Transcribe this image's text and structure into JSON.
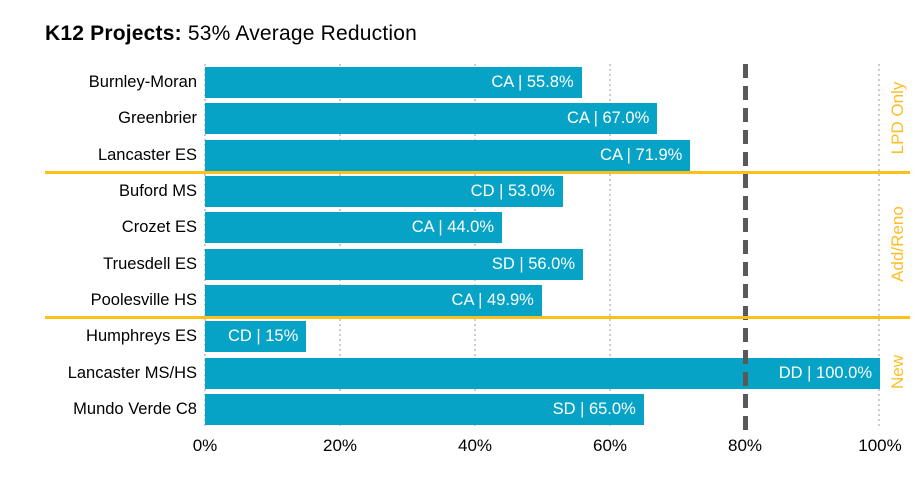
{
  "title": {
    "bold": "K12 Projects:",
    "rest": "53% Average Reduction"
  },
  "colors": {
    "bar": "#06A3C6",
    "accent_amber": "#FCC01B",
    "reference_line": "#595959",
    "gridline": "#CCCCCC",
    "bar_label_text": "#FFFFFF"
  },
  "chart_data": {
    "type": "bar",
    "orientation": "horizontal",
    "title": "K12 Projects: 53% Average Reduction",
    "average_reduction_pct": 53,
    "xlabel": "",
    "ylabel": "",
    "xlim": [
      0,
      100
    ],
    "x_ticks": [
      "0%",
      "20%",
      "40%",
      "60%",
      "80%",
      "100%"
    ],
    "grid": "vertical-dotted",
    "reference_line_pct": 80,
    "rows": [
      {
        "school": "Burnley-Moran",
        "phase": "CA",
        "value_pct": 55.8,
        "bar_label": "CA | 55.8%"
      },
      {
        "school": "Greenbrier",
        "phase": "CA",
        "value_pct": 67.0,
        "bar_label": "CA | 67.0%"
      },
      {
        "school": "Lancaster ES",
        "phase": "CA",
        "value_pct": 71.9,
        "bar_label": "CA | 71.9%"
      },
      {
        "school": "Buford MS",
        "phase": "CD",
        "value_pct": 53.0,
        "bar_label": "CD | 53.0%"
      },
      {
        "school": "Crozet ES",
        "phase": "CA",
        "value_pct": 44.0,
        "bar_label": "CA | 44.0%"
      },
      {
        "school": "Truesdell ES",
        "phase": "SD",
        "value_pct": 56.0,
        "bar_label": "SD | 56.0%"
      },
      {
        "school": "Poolesville HS",
        "phase": "CA",
        "value_pct": 49.9,
        "bar_label": "CA | 49.9%"
      },
      {
        "school": "Humphreys ES",
        "phase": "CD",
        "value_pct": 15,
        "bar_label": "CD | 15%"
      },
      {
        "school": "Lancaster MS/HS",
        "phase": "DD",
        "value_pct": 100.0,
        "bar_label": "DD | 100.0%"
      },
      {
        "school": "Mundo Verde C8",
        "phase": "SD",
        "value_pct": 65.0,
        "bar_label": "SD | 65.0%"
      }
    ],
    "groups": [
      {
        "label": "LPD Only",
        "row_indexes": [
          0,
          1,
          2
        ]
      },
      {
        "label": "Add/Reno",
        "row_indexes": [
          3,
          4,
          5,
          6
        ]
      },
      {
        "label": "New",
        "row_indexes": [
          7,
          8,
          9
        ]
      }
    ],
    "legend_position": "none"
  }
}
